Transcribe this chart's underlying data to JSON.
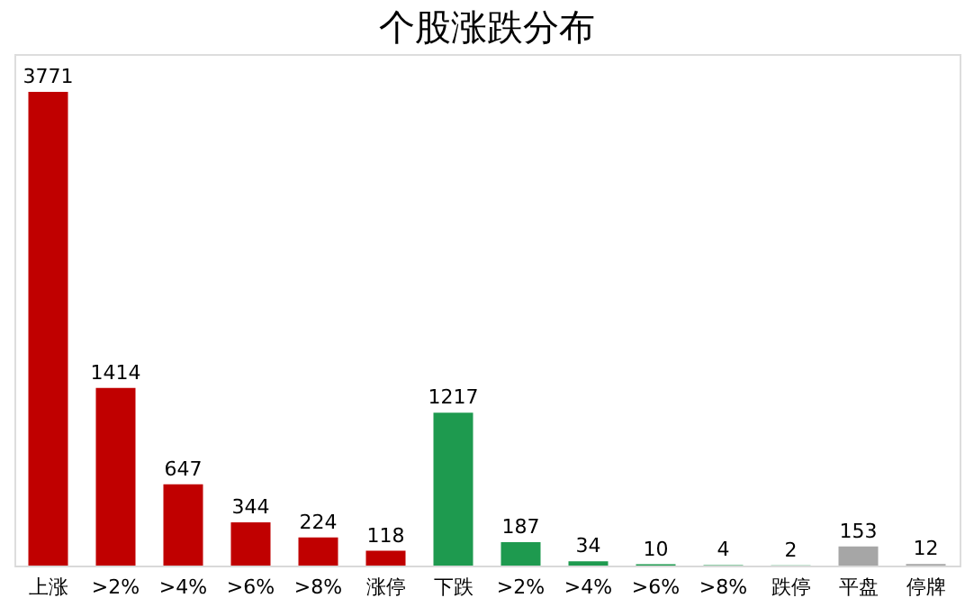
{
  "chart_data": {
    "type": "bar",
    "title": "个股涨跌分布",
    "categories": [
      "上涨",
      ">2%",
      ">4%",
      ">6%",
      ">8%",
      "涨停",
      "下跌",
      ">2%",
      ">4%",
      ">6%",
      ">8%",
      "跌停",
      "平盘",
      "停牌"
    ],
    "values": [
      3771,
      1414,
      647,
      344,
      224,
      118,
      1217,
      187,
      34,
      10,
      4,
      2,
      153,
      12
    ],
    "colors": [
      "#c00000",
      "#c00000",
      "#c00000",
      "#c00000",
      "#c00000",
      "#c00000",
      "#1e9a4f",
      "#1e9a4f",
      "#1e9a4f",
      "#1e9a4f",
      "#1e9a4f",
      "#1e9a4f",
      "#a6a6a6",
      "#a6a6a6"
    ],
    "data_labels": true,
    "grid": false
  }
}
